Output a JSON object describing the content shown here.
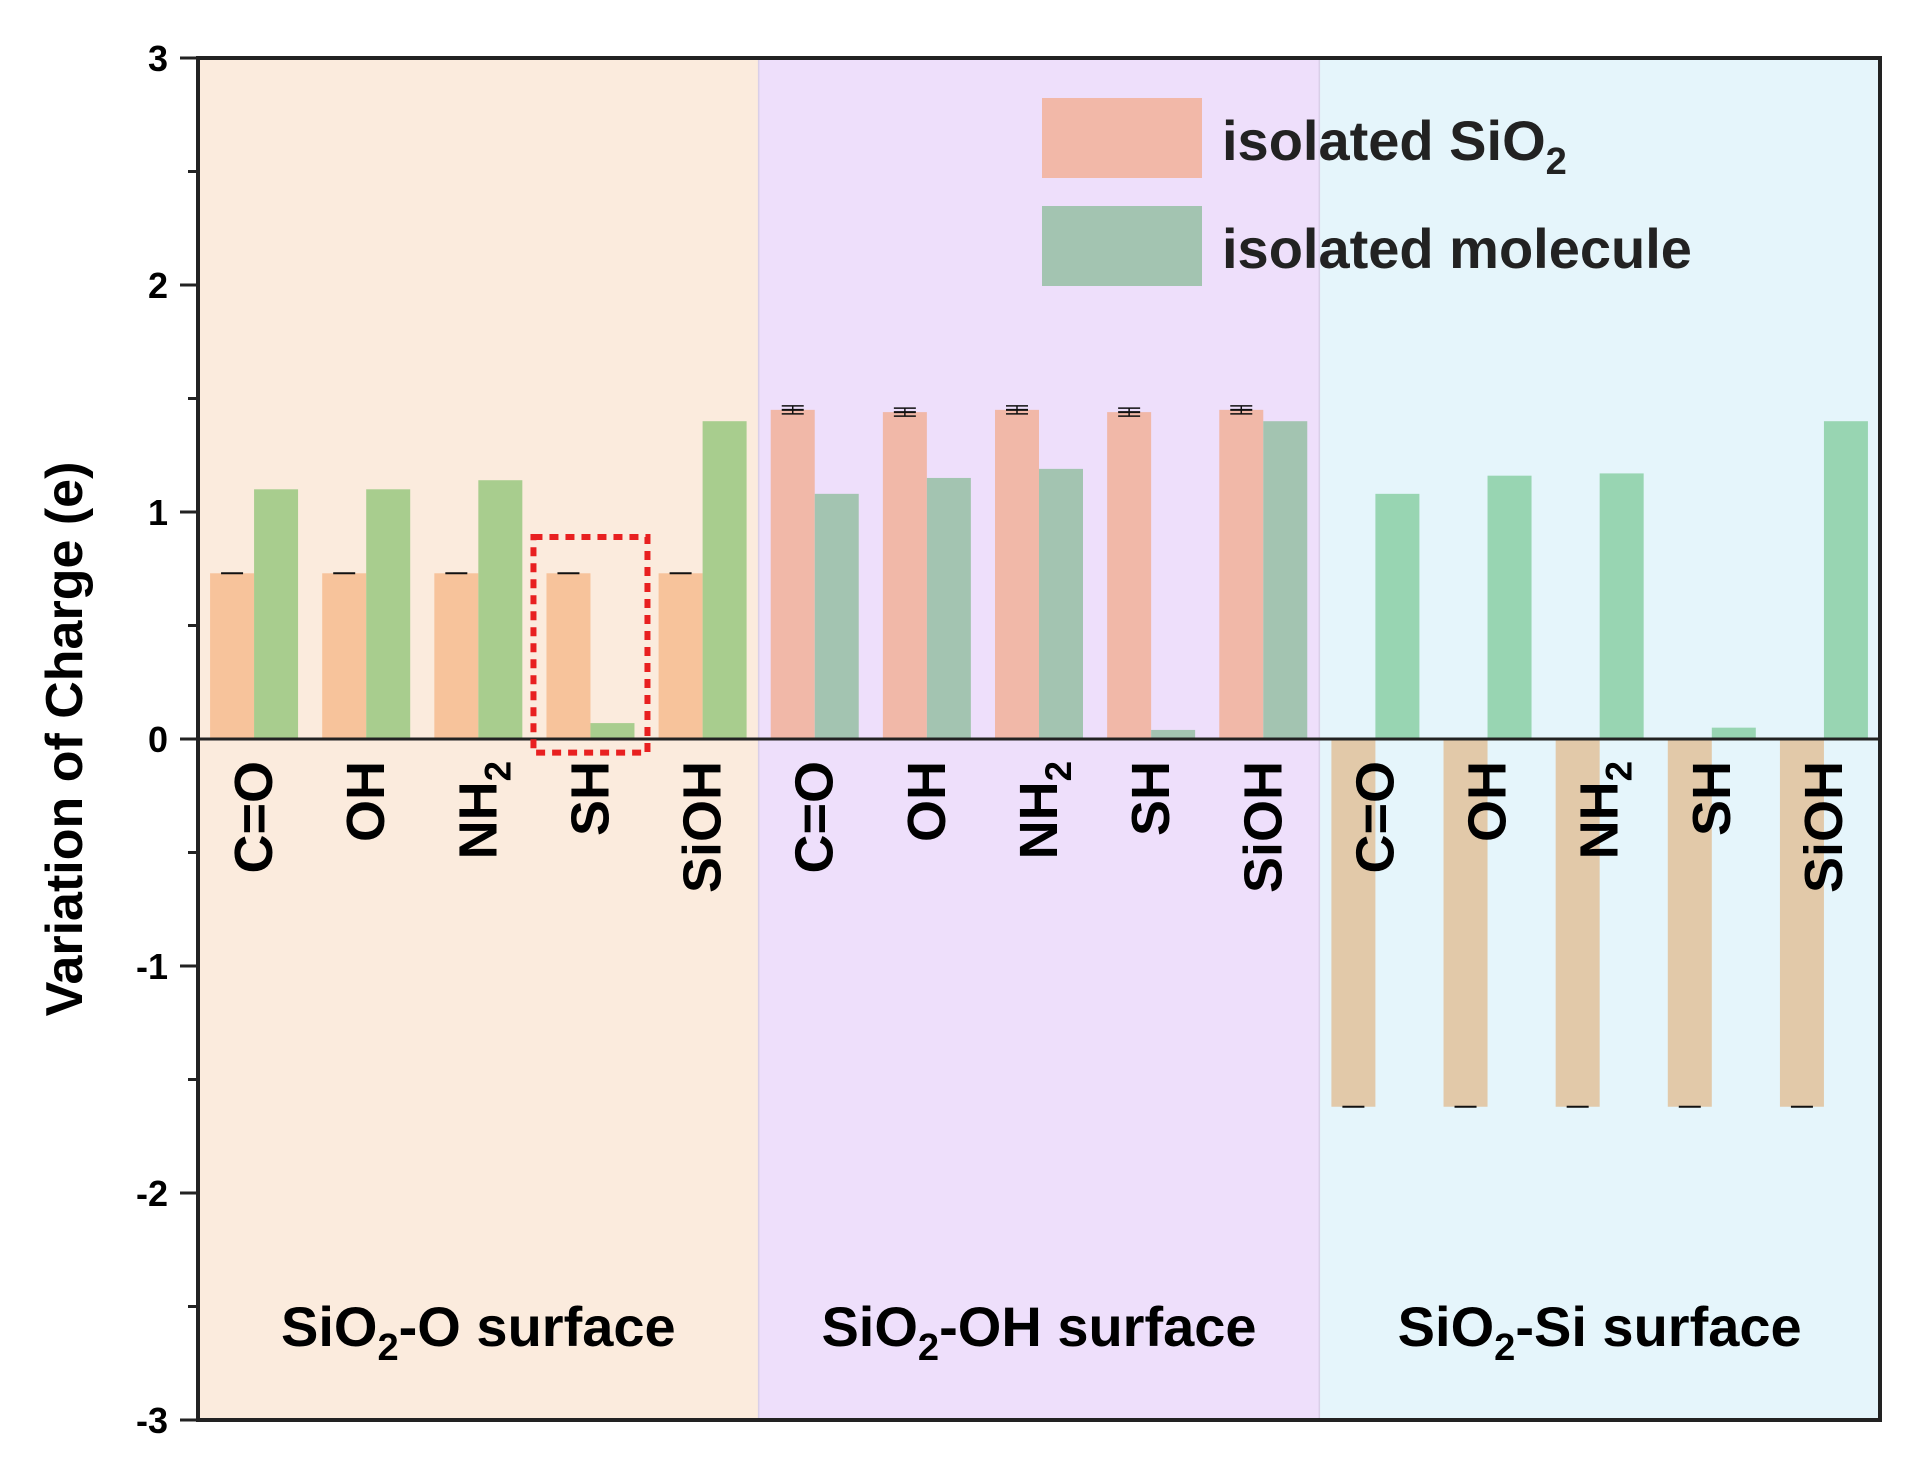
{
  "chart_data": {
    "type": "bar",
    "ylabel": "Variation of Charge (e)",
    "ylim": [
      -3,
      3
    ],
    "yticks": [
      "-3",
      "-2",
      "-1",
      "0",
      "1",
      "2",
      "3"
    ],
    "legend": {
      "placement": "top-right",
      "entries": [
        {
          "base": "isolated SiO",
          "sub": "2",
          "color": "#f2b8a8"
        },
        {
          "base": "isolated molecule",
          "sub": "",
          "color": "#a3c4b1"
        }
      ]
    },
    "regions": [
      {
        "name_base": "SiO",
        "name_sub": "2",
        "name_rest": "-O surface",
        "background": "#fbebdd",
        "categories": [
          {
            "base": "C=O",
            "sub": ""
          },
          {
            "base": "OH",
            "sub": ""
          },
          {
            "base": "NH",
            "sub": "2"
          },
          {
            "base": "SH",
            "sub": ""
          },
          {
            "base": "SiOH",
            "sub": ""
          }
        ],
        "series": [
          {
            "name": "isolated SiO2",
            "color": "#f7c39b",
            "values": [
              0.73,
              0.73,
              0.73,
              0.73,
              0.73
            ]
          },
          {
            "name": "isolated molecule",
            "color": "#a8cd8e",
            "values": [
              1.1,
              1.1,
              1.14,
              0.07,
              1.4
            ]
          }
        ],
        "highlight_index": 3
      },
      {
        "name_base": "SiO",
        "name_sub": "2",
        "name_rest": "-OH surface",
        "background": "#eedffb",
        "categories": [
          {
            "base": "C=O",
            "sub": ""
          },
          {
            "base": "OH",
            "sub": ""
          },
          {
            "base": "NH",
            "sub": "2"
          },
          {
            "base": "SH",
            "sub": ""
          },
          {
            "base": "SiOH",
            "sub": ""
          }
        ],
        "series": [
          {
            "name": "isolated SiO2",
            "color": "#f1b8a8",
            "values": [
              1.45,
              1.44,
              1.45,
              1.44,
              1.45
            ]
          },
          {
            "name": "isolated molecule",
            "color": "#a3c4b1",
            "values": [
              1.08,
              1.15,
              1.19,
              0.04,
              1.4
            ]
          }
        ]
      },
      {
        "name_base": "SiO",
        "name_sub": "2",
        "name_rest": "-Si surface",
        "background": "#e5f5fb",
        "categories": [
          {
            "base": "C=O",
            "sub": ""
          },
          {
            "base": "OH",
            "sub": ""
          },
          {
            "base": "NH",
            "sub": "2"
          },
          {
            "base": "SH",
            "sub": ""
          },
          {
            "base": "SiOH",
            "sub": ""
          }
        ],
        "series": [
          {
            "name": "isolated SiO2",
            "color": "#e2c9a9",
            "values": [
              -1.62,
              -1.62,
              -1.62,
              -1.62,
              -1.62
            ]
          },
          {
            "name": "isolated molecule",
            "color": "#98d5b2",
            "values": [
              1.08,
              1.16,
              1.17,
              0.05,
              1.4
            ]
          }
        ]
      }
    ]
  }
}
